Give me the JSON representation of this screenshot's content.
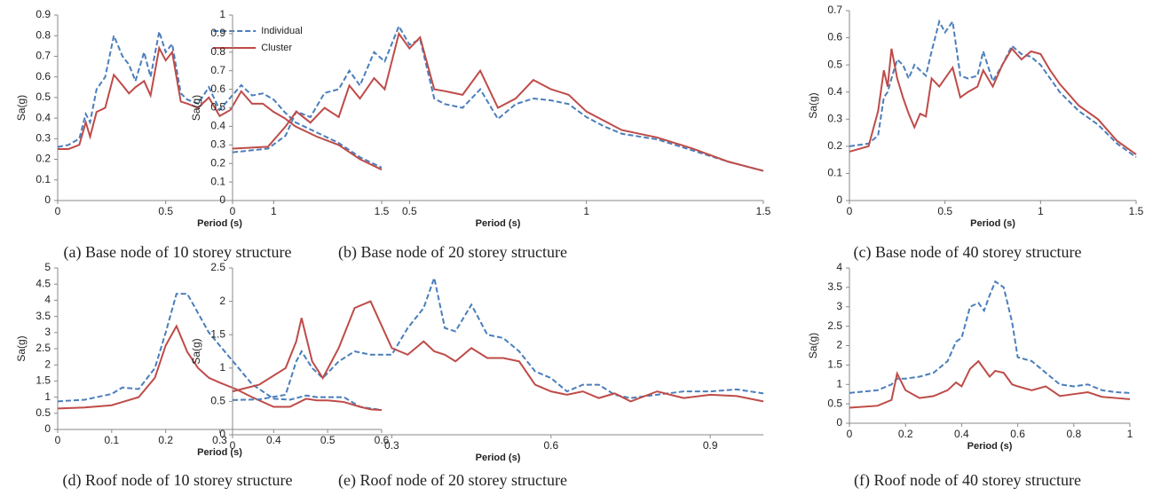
{
  "chart_data": [
    {
      "type": "line",
      "caption": "(a) Base node of 10 storey structure",
      "xlabel": "Period (s)",
      "ylabel": "Sa(g)",
      "legend": "upper center",
      "x": [
        0,
        0.05,
        0.1,
        0.13,
        0.15,
        0.18,
        0.22,
        0.26,
        0.3,
        0.33,
        0.36,
        0.4,
        0.43,
        0.47,
        0.5,
        0.53,
        0.57,
        0.6,
        0.65,
        0.7,
        0.75,
        0.8,
        0.85,
        0.9,
        0.95,
        1.0,
        1.05,
        1.1,
        1.2,
        1.3,
        1.4,
        1.5
      ],
      "series": [
        {
          "name": "Individual",
          "color": "#4a7ebb",
          "dashed": true,
          "values": [
            0.26,
            0.27,
            0.3,
            0.42,
            0.38,
            0.54,
            0.6,
            0.8,
            0.7,
            0.66,
            0.58,
            0.72,
            0.6,
            0.82,
            0.72,
            0.76,
            0.52,
            0.49,
            0.47,
            0.55,
            0.44,
            0.5,
            0.56,
            0.51,
            0.52,
            0.49,
            0.43,
            0.38,
            0.33,
            0.28,
            0.21,
            0.16
          ]
        },
        {
          "name": "Cluster",
          "color": "#be4b48",
          "dashed": false,
          "values": [
            0.25,
            0.25,
            0.27,
            0.38,
            0.31,
            0.43,
            0.45,
            0.61,
            0.56,
            0.52,
            0.55,
            0.58,
            0.51,
            0.74,
            0.68,
            0.72,
            0.48,
            0.47,
            0.45,
            0.5,
            0.41,
            0.44,
            0.53,
            0.47,
            0.47,
            0.43,
            0.4,
            0.36,
            0.31,
            0.27,
            0.2,
            0.15
          ]
        }
      ],
      "xlim": [
        0,
        1.5
      ],
      "xticks": [
        0,
        0.5,
        1,
        1.5
      ],
      "ylim": [
        0,
        0.9
      ],
      "yticks": [
        0,
        0.1,
        0.2,
        0.3,
        0.4,
        0.5,
        0.6,
        0.7,
        0.8,
        0.9
      ]
    },
    {
      "type": "line",
      "caption": "(b) Base node of 20 storey structure",
      "xlabel": "Period (s)",
      "ylabel": "Sa(g)",
      "x": [
        0,
        0.1,
        0.15,
        0.18,
        0.22,
        0.26,
        0.3,
        0.33,
        0.36,
        0.4,
        0.43,
        0.47,
        0.5,
        0.53,
        0.57,
        0.6,
        0.65,
        0.7,
        0.75,
        0.8,
        0.85,
        0.9,
        0.95,
        1.0,
        1.05,
        1.1,
        1.2,
        1.3,
        1.4,
        1.5
      ],
      "series": [
        {
          "name": "Individual",
          "color": "#4a7ebb",
          "dashed": true,
          "values": [
            0.26,
            0.28,
            0.35,
            0.48,
            0.45,
            0.58,
            0.6,
            0.7,
            0.62,
            0.8,
            0.75,
            0.94,
            0.84,
            0.87,
            0.55,
            0.52,
            0.5,
            0.6,
            0.44,
            0.52,
            0.55,
            0.54,
            0.52,
            0.45,
            0.4,
            0.36,
            0.33,
            0.27,
            0.21,
            0.16
          ]
        },
        {
          "name": "Cluster",
          "color": "#be4b48",
          "dashed": false,
          "values": [
            0.28,
            0.29,
            0.4,
            0.48,
            0.42,
            0.5,
            0.45,
            0.62,
            0.55,
            0.66,
            0.6,
            0.9,
            0.82,
            0.88,
            0.6,
            0.59,
            0.57,
            0.7,
            0.5,
            0.55,
            0.65,
            0.6,
            0.57,
            0.48,
            0.43,
            0.38,
            0.34,
            0.28,
            0.21,
            0.16
          ]
        }
      ],
      "xlim": [
        0,
        1.5
      ],
      "xticks": [
        0,
        0.5,
        1,
        1.5
      ],
      "ylim": [
        0,
        1
      ],
      "yticks": [
        0,
        0.1,
        0.2,
        0.3,
        0.4,
        0.5,
        0.6,
        0.7,
        0.8,
        0.9,
        1
      ]
    },
    {
      "type": "line",
      "caption": "(c) Base node of 40 storey structure",
      "xlabel": "Period (s)",
      "ylabel": "Sa(g)",
      "x": [
        0,
        0.1,
        0.15,
        0.18,
        0.2,
        0.22,
        0.25,
        0.28,
        0.31,
        0.34,
        0.37,
        0.4,
        0.43,
        0.47,
        0.5,
        0.54,
        0.58,
        0.62,
        0.67,
        0.7,
        0.75,
        0.8,
        0.85,
        0.9,
        0.95,
        1.0,
        1.05,
        1.1,
        1.2,
        1.3,
        1.4,
        1.5
      ],
      "series": [
        {
          "name": "Individual",
          "color": "#4a7ebb",
          "dashed": true,
          "values": [
            0.2,
            0.21,
            0.24,
            0.38,
            0.4,
            0.45,
            0.52,
            0.5,
            0.45,
            0.5,
            0.48,
            0.46,
            0.55,
            0.66,
            0.62,
            0.66,
            0.46,
            0.45,
            0.46,
            0.55,
            0.44,
            0.5,
            0.57,
            0.54,
            0.53,
            0.5,
            0.45,
            0.4,
            0.33,
            0.28,
            0.21,
            0.16
          ]
        },
        {
          "name": "Cluster",
          "color": "#be4b48",
          "dashed": false,
          "values": [
            0.18,
            0.2,
            0.33,
            0.48,
            0.42,
            0.56,
            0.45,
            0.38,
            0.32,
            0.27,
            0.32,
            0.31,
            0.45,
            0.42,
            0.45,
            0.49,
            0.38,
            0.4,
            0.42,
            0.48,
            0.42,
            0.5,
            0.56,
            0.52,
            0.55,
            0.54,
            0.48,
            0.43,
            0.35,
            0.3,
            0.22,
            0.17
          ]
        }
      ],
      "xlim": [
        0,
        1.5
      ],
      "xticks": [
        0,
        0.5,
        1,
        1.5
      ],
      "ylim": [
        0,
        0.7
      ],
      "yticks": [
        0,
        0.1,
        0.2,
        0.3,
        0.4,
        0.5,
        0.6,
        0.7
      ]
    },
    {
      "type": "line",
      "caption": "(d) Roof node of 10 storey structure",
      "xlabel": "Period (s)",
      "ylabel": "Sa(g)",
      "x": [
        0,
        0.05,
        0.1,
        0.12,
        0.15,
        0.18,
        0.2,
        0.22,
        0.24,
        0.26,
        0.28,
        0.3,
        0.33,
        0.36,
        0.4,
        0.43,
        0.46,
        0.48,
        0.5,
        0.53,
        0.56,
        0.58,
        0.6
      ],
      "series": [
        {
          "name": "Individual",
          "color": "#4a7ebb",
          "dashed": true,
          "values": [
            0.87,
            0.92,
            1.1,
            1.3,
            1.25,
            1.9,
            3.0,
            4.2,
            4.2,
            3.6,
            3.0,
            2.6,
            2.0,
            1.4,
            0.95,
            0.92,
            1.05,
            1.0,
            1.0,
            1.0,
            0.7,
            0.65,
            0.6
          ]
        },
        {
          "name": "Cluster",
          "color": "#be4b48",
          "dashed": false,
          "values": [
            0.65,
            0.68,
            0.75,
            0.85,
            1.0,
            1.6,
            2.6,
            3.2,
            2.4,
            1.9,
            1.6,
            1.45,
            1.25,
            1.0,
            0.7,
            0.7,
            0.95,
            0.9,
            0.9,
            0.85,
            0.7,
            0.62,
            0.6
          ]
        }
      ],
      "xlim": [
        0,
        0.6
      ],
      "xticks": [
        0,
        0.1,
        0.2,
        0.3,
        0.4,
        0.5,
        0.6
      ],
      "ylim": [
        0,
        5
      ],
      "yticks": [
        0,
        0.5,
        1,
        1.5,
        2,
        2.5,
        3,
        3.5,
        4,
        4.5,
        5
      ]
    },
    {
      "type": "line",
      "caption": "(e) Roof node of 20 storey structure",
      "xlabel": "Period (s)",
      "ylabel": "Sa(g)",
      "x": [
        0,
        0.05,
        0.1,
        0.12,
        0.13,
        0.15,
        0.17,
        0.2,
        0.23,
        0.26,
        0.3,
        0.33,
        0.36,
        0.38,
        0.4,
        0.42,
        0.45,
        0.48,
        0.51,
        0.54,
        0.57,
        0.6,
        0.63,
        0.66,
        0.69,
        0.72,
        0.75,
        0.8,
        0.85,
        0.9,
        0.95,
        1.0
      ],
      "series": [
        {
          "name": "Individual",
          "color": "#4a7ebb",
          "dashed": true,
          "values": [
            0.52,
            0.53,
            0.6,
            1.1,
            1.25,
            1.0,
            0.85,
            1.1,
            1.25,
            1.2,
            1.2,
            1.6,
            1.9,
            2.35,
            1.6,
            1.55,
            1.95,
            1.5,
            1.45,
            1.25,
            0.95,
            0.85,
            0.65,
            0.75,
            0.75,
            0.6,
            0.55,
            0.6,
            0.65,
            0.65,
            0.68,
            0.62
          ]
        },
        {
          "name": "Cluster",
          "color": "#be4b48",
          "dashed": false,
          "values": [
            0.65,
            0.75,
            1.0,
            1.4,
            1.75,
            1.1,
            0.85,
            1.3,
            1.9,
            2.0,
            1.3,
            1.2,
            1.4,
            1.25,
            1.2,
            1.1,
            1.3,
            1.15,
            1.15,
            1.1,
            0.75,
            0.65,
            0.6,
            0.65,
            0.55,
            0.62,
            0.5,
            0.65,
            0.55,
            0.6,
            0.58,
            0.5
          ]
        }
      ],
      "xlim": [
        0,
        1
      ],
      "xticks": [
        0,
        0.3,
        0.6,
        0.9
      ],
      "ylim": [
        0,
        2.5
      ],
      "yticks": [
        0,
        0.5,
        1,
        1.5,
        2,
        2.5
      ]
    },
    {
      "type": "line",
      "caption": "(f) Roof node of 40 storey structure",
      "xlabel": "Period (s)",
      "ylabel": "Sa(g)",
      "x": [
        0,
        0.1,
        0.15,
        0.17,
        0.2,
        0.25,
        0.3,
        0.35,
        0.38,
        0.4,
        0.43,
        0.46,
        0.48,
        0.5,
        0.52,
        0.55,
        0.58,
        0.6,
        0.65,
        0.7,
        0.75,
        0.8,
        0.85,
        0.9,
        0.95,
        1.0
      ],
      "series": [
        {
          "name": "Individual",
          "color": "#4a7ebb",
          "dashed": true,
          "values": [
            0.78,
            0.85,
            1.0,
            1.15,
            1.15,
            1.2,
            1.3,
            1.6,
            2.1,
            2.2,
            3.0,
            3.1,
            2.9,
            3.3,
            3.65,
            3.5,
            2.6,
            1.7,
            1.6,
            1.3,
            1.0,
            0.95,
            1.0,
            0.85,
            0.8,
            0.78
          ]
        },
        {
          "name": "Cluster",
          "color": "#be4b48",
          "dashed": false,
          "values": [
            0.4,
            0.45,
            0.6,
            1.28,
            0.85,
            0.65,
            0.7,
            0.85,
            1.05,
            0.95,
            1.4,
            1.6,
            1.4,
            1.2,
            1.35,
            1.3,
            1.0,
            0.95,
            0.85,
            0.95,
            0.7,
            0.75,
            0.8,
            0.68,
            0.65,
            0.62
          ]
        }
      ],
      "xlim": [
        0,
        1
      ],
      "xticks": [
        0,
        0.2,
        0.4,
        0.6,
        0.8,
        1
      ],
      "ylim": [
        0,
        4
      ],
      "yticks": [
        0,
        0.5,
        1,
        1.5,
        2,
        2.5,
        3,
        3.5,
        4
      ]
    }
  ]
}
